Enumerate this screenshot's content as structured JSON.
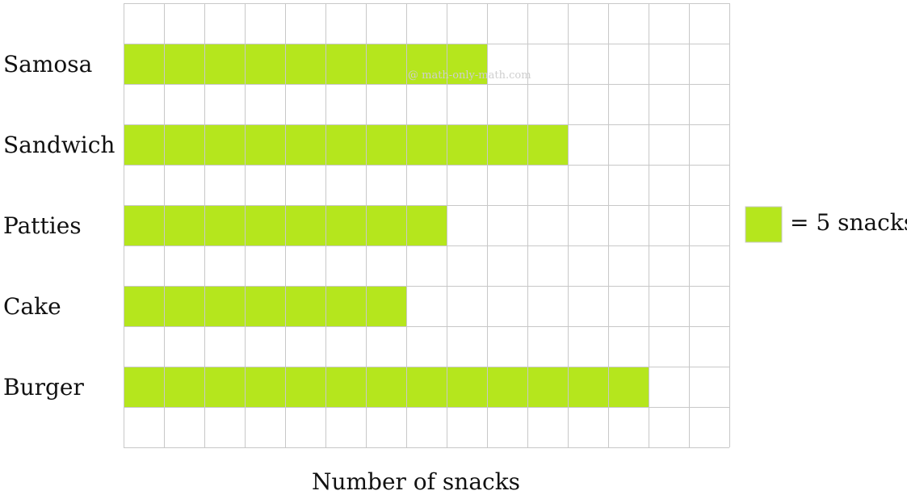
{
  "chart_data": {
    "type": "bar",
    "orientation": "horizontal",
    "categories": [
      "Samosa",
      "Sandwich",
      "Patties",
      "Cake",
      "Burger"
    ],
    "values": [
      9,
      11,
      8,
      7,
      13
    ],
    "unit_value": 5,
    "xlabel": "Number of snacks",
    "ylabel": "",
    "xlim": [
      0,
      15
    ],
    "grid": true,
    "bar_color": "#b5e61d",
    "grid_color": "#c8c8c8",
    "legend": {
      "position": "right",
      "text": "= 5 snacks",
      "color": "#b5e61d"
    },
    "watermark": "@ math-only-math.com"
  }
}
